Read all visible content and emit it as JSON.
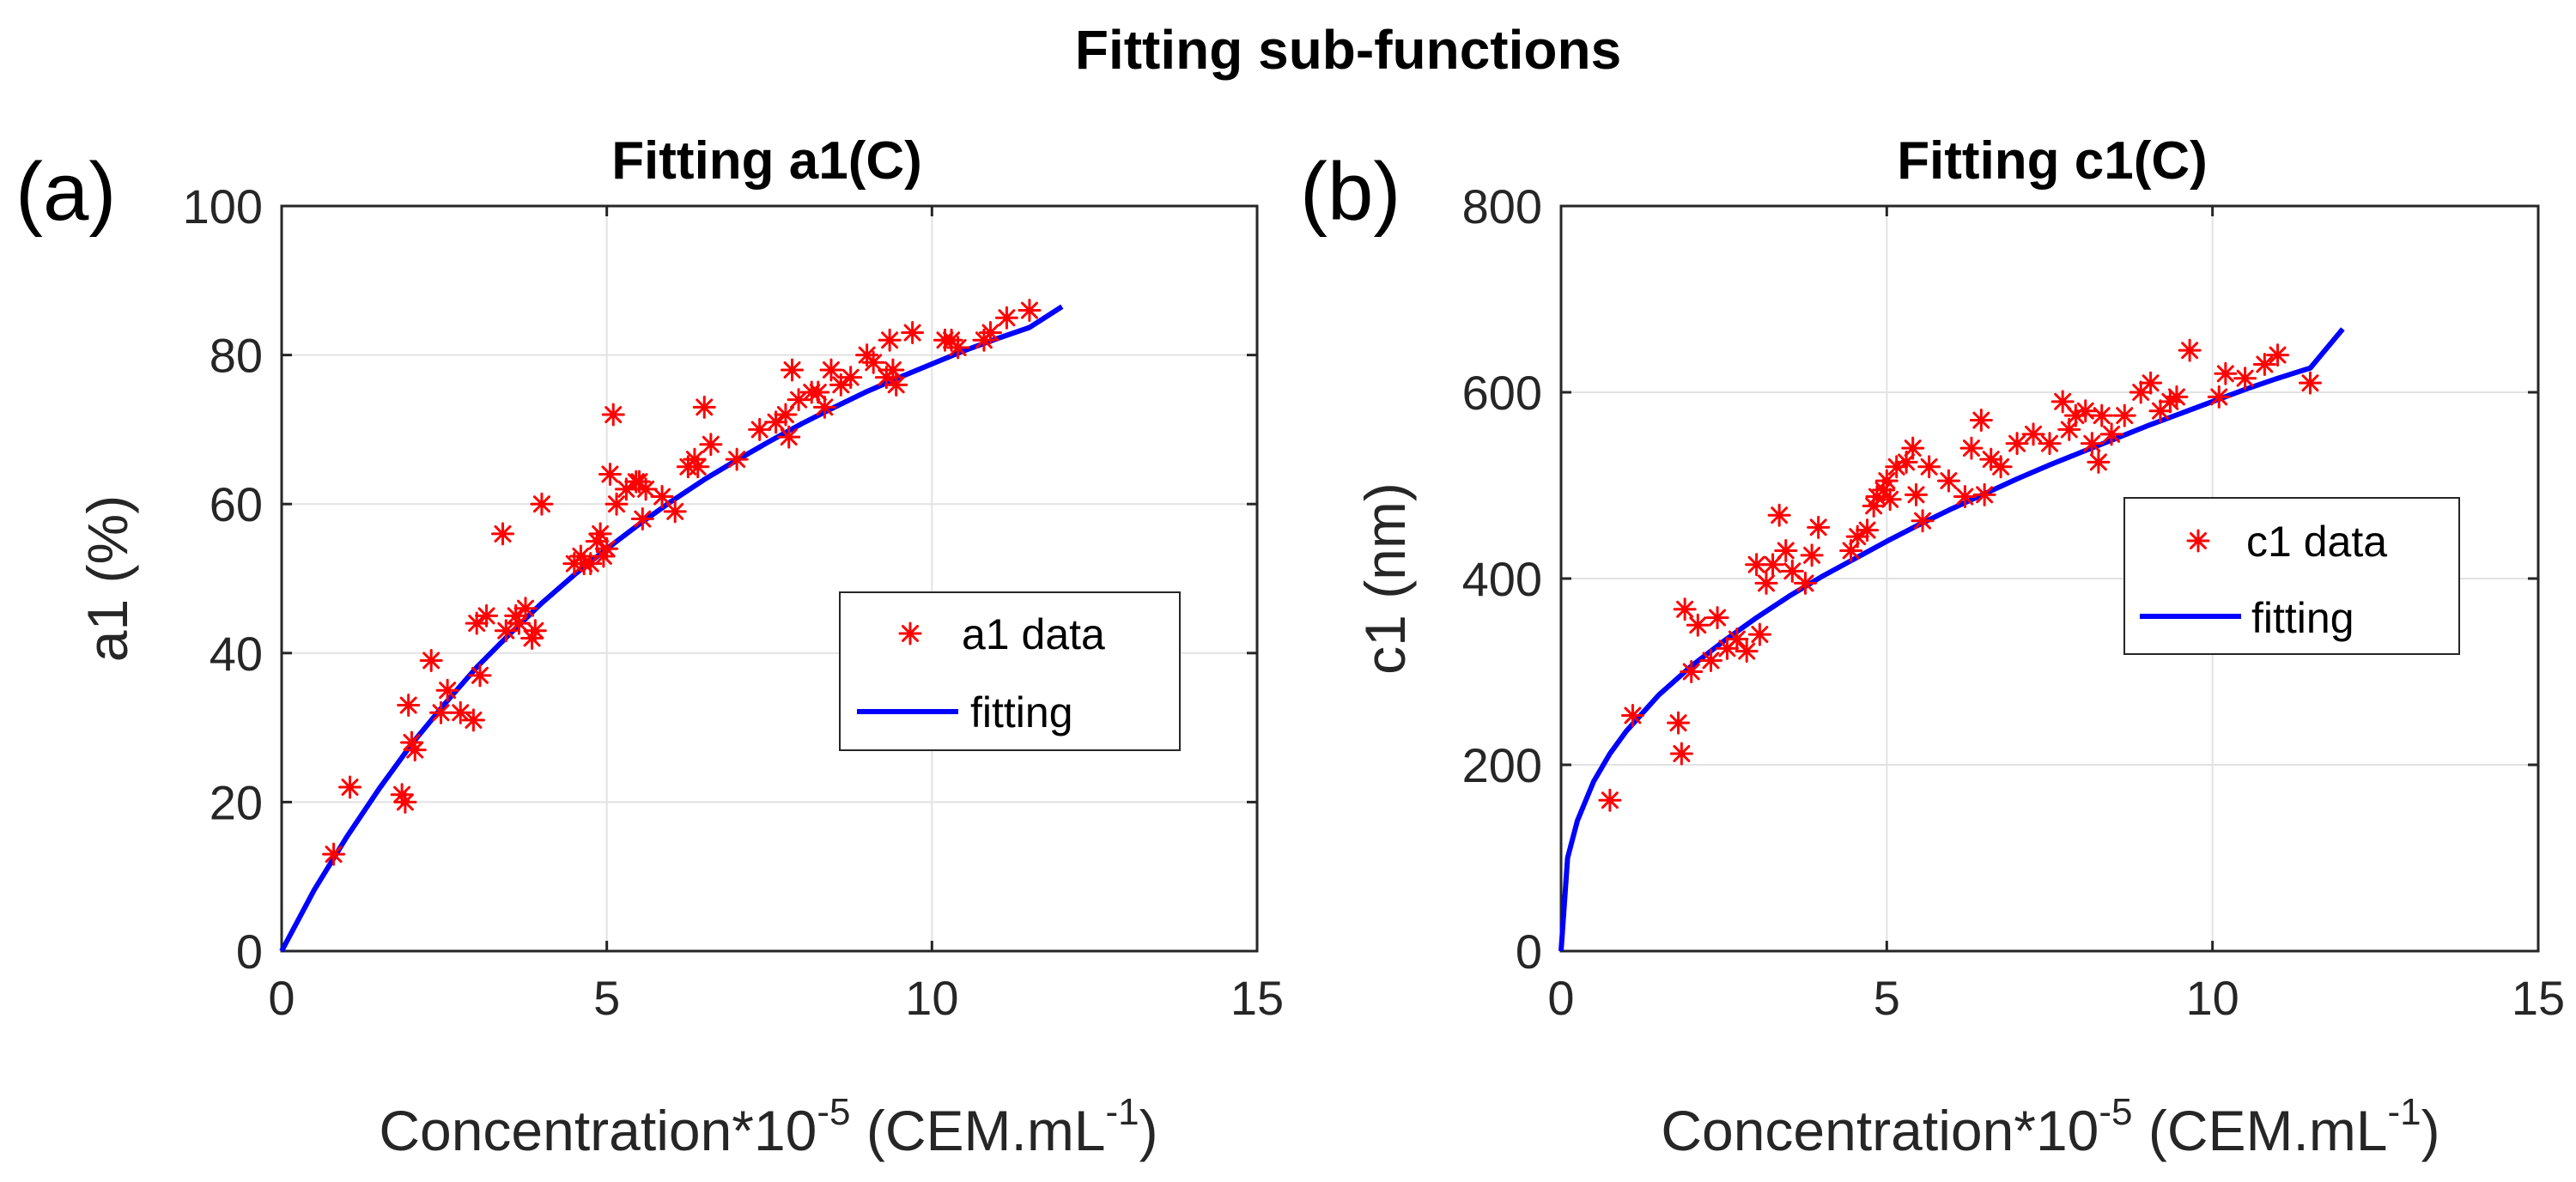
{
  "figure_title": "Fitting sub-functions",
  "colors": {
    "data": "#ff0000",
    "fit": "#0000ff",
    "axis": "#262626",
    "grid": "#e2e2e2"
  },
  "chart_data": [
    {
      "type": "scatter",
      "panel_label": "(a)",
      "title": "Fitting a1(C)",
      "xlabel": "Concentration*10",
      "xlabel_exp": "-5",
      "xlabel_unit": " (CEM.mL",
      "xlabel_unit_exp": "-1",
      "xlabel_close": ")",
      "ylabel": "a1 (%)",
      "xlim": [
        0,
        15
      ],
      "ylim": [
        0,
        100
      ],
      "xticks": [
        0,
        5,
        10,
        15
      ],
      "yticks": [
        0,
        20,
        40,
        60,
        80,
        100
      ],
      "xtick_labels": [
        "0",
        "5",
        "10",
        "15"
      ],
      "ytick_labels": [
        "0",
        "20",
        "40",
        "60",
        "80",
        "100"
      ],
      "grid": true,
      "legend_position": "right",
      "series": [
        {
          "name": "a1 data",
          "kind": "marker",
          "x": [
            0.8,
            1.05,
            1.85,
            1.9,
            1.95,
            2.0,
            2.05,
            2.3,
            2.45,
            2.55,
            2.75,
            2.95,
            3.0,
            3.05,
            3.15,
            3.4,
            3.45,
            3.6,
            3.65,
            3.75,
            3.85,
            3.9,
            4.0,
            4.5,
            4.6,
            4.65,
            4.75,
            4.85,
            4.9,
            4.95,
            5.0,
            5.05,
            5.1,
            5.15,
            5.3,
            5.45,
            5.5,
            5.55,
            5.6,
            5.85,
            6.05,
            6.25,
            6.35,
            6.4,
            6.5,
            6.6,
            7.0,
            7.35,
            7.6,
            7.75,
            7.8,
            7.85,
            7.95,
            8.15,
            8.25,
            8.35,
            8.45,
            8.6,
            8.75,
            9.0,
            9.1,
            9.3,
            9.35,
            9.4,
            9.45,
            9.7,
            10.2,
            10.3,
            10.4,
            10.8,
            10.9,
            11.15,
            11.5
          ],
          "y": [
            13,
            22,
            21,
            20,
            33,
            28,
            27,
            39,
            32,
            35,
            32,
            31,
            44,
            37,
            45,
            56,
            43,
            45,
            44,
            46,
            42,
            43,
            60,
            52,
            53,
            52,
            52,
            55,
            56,
            53,
            54,
            64,
            72,
            60,
            62,
            63,
            63,
            58,
            62,
            61,
            59,
            65,
            66,
            65,
            73,
            68,
            66,
            70,
            71,
            72,
            69,
            78,
            74,
            75,
            75,
            73,
            78,
            76,
            77,
            80,
            79,
            77,
            82,
            78,
            76,
            83,
            82,
            82,
            81,
            82,
            83,
            85,
            86
          ]
        },
        {
          "name": "fitting",
          "kind": "line",
          "x": [
            0,
            0.5,
            1,
            1.5,
            2,
            2.5,
            3,
            3.5,
            4,
            4.5,
            5,
            5.5,
            6,
            6.5,
            7,
            7.5,
            8,
            8.5,
            9,
            9.5,
            10,
            10.5,
            11,
            11.5,
            12
          ],
          "y": [
            0,
            8.2,
            15.3,
            21.8,
            27.8,
            33.1,
            38.1,
            42.5,
            46.7,
            50.5,
            54.0,
            57.3,
            60.4,
            63.3,
            65.9,
            68.4,
            70.8,
            73.0,
            75.1,
            77.0,
            78.8,
            80.6,
            82.2,
            83.7,
            86.5
          ]
        }
      ]
    },
    {
      "type": "scatter",
      "panel_label": "(b)",
      "title": "Fitting c1(C)",
      "xlabel": "Concentration*10",
      "xlabel_exp": "-5",
      "xlabel_unit": " (CEM.mL",
      "xlabel_unit_exp": "-1",
      "xlabel_close": ")",
      "ylabel": "c1 (nm)",
      "xlim": [
        0,
        15
      ],
      "ylim": [
        0,
        800
      ],
      "xticks": [
        0,
        5,
        10,
        15
      ],
      "yticks": [
        0,
        200,
        400,
        600,
        800
      ],
      "xtick_labels": [
        "0",
        "5",
        "10",
        "15"
      ],
      "ytick_labels": [
        "0",
        "200",
        "400",
        "600",
        "800"
      ],
      "grid": true,
      "legend_position": "right",
      "series": [
        {
          "name": "c1 data",
          "kind": "marker",
          "x": [
            0.75,
            1.1,
            1.8,
            1.85,
            1.9,
            2.0,
            2.1,
            2.3,
            2.4,
            2.55,
            2.7,
            2.85,
            3.0,
            3.05,
            3.15,
            3.25,
            3.35,
            3.45,
            3.55,
            3.75,
            3.85,
            3.95,
            4.45,
            4.55,
            4.7,
            4.8,
            4.85,
            4.95,
            5.0,
            5.05,
            5.15,
            5.3,
            5.4,
            5.45,
            5.55,
            5.65,
            5.95,
            6.2,
            6.3,
            6.45,
            6.5,
            6.6,
            6.75,
            7.0,
            7.25,
            7.5,
            7.7,
            7.8,
            7.9,
            8.05,
            8.15,
            8.25,
            8.3,
            8.45,
            8.65,
            8.9,
            9.05,
            9.2,
            9.35,
            9.45,
            9.65,
            10.1,
            10.2,
            10.5,
            10.8,
            11.0,
            11.5
          ],
          "y": [
            162,
            253,
            245,
            212,
            367,
            300,
            350,
            312,
            358,
            325,
            335,
            322,
            415,
            340,
            395,
            415,
            468,
            430,
            408,
            395,
            425,
            455,
            430,
            445,
            452,
            478,
            488,
            495,
            505,
            485,
            520,
            525,
            540,
            490,
            462,
            520,
            505,
            488,
            540,
            570,
            490,
            528,
            520,
            545,
            555,
            545,
            590,
            560,
            575,
            580,
            545,
            525,
            575,
            555,
            575,
            600,
            610,
            580,
            590,
            595,
            645,
            595,
            620,
            615,
            630,
            640,
            610
          ]
        },
        {
          "name": "fitting",
          "kind": "line",
          "x": [
            0,
            0.1,
            0.25,
            0.5,
            0.75,
            1,
            1.5,
            2,
            2.5,
            3,
            3.5,
            4,
            4.5,
            5,
            5.5,
            6,
            6.5,
            7,
            7.5,
            8,
            8.5,
            9,
            9.5,
            10,
            10.5,
            11,
            11.5,
            12
          ],
          "y": [
            0,
            100,
            140,
            182,
            212,
            236,
            275,
            306,
            333,
            358,
            381,
            402,
            421,
            440,
            458,
            475,
            491,
            507,
            522,
            536,
            550,
            564,
            577,
            590,
            603,
            615,
            626,
            668
          ]
        }
      ]
    }
  ]
}
